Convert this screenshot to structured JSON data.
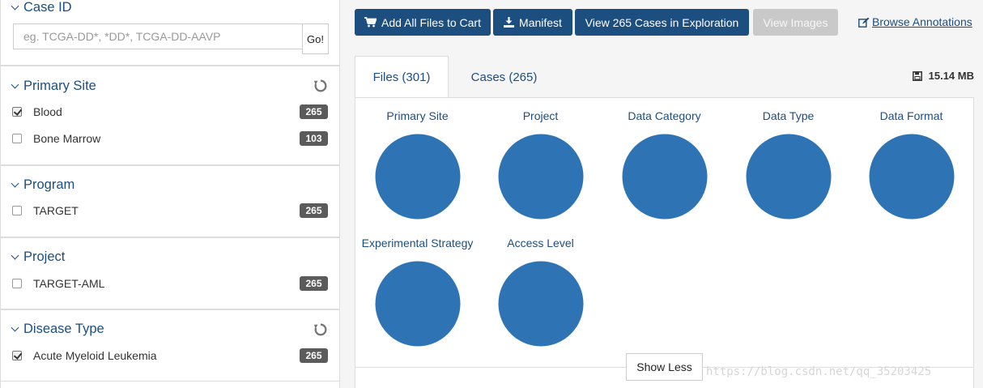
{
  "sidebar": {
    "case_id": {
      "title": "Case ID",
      "placeholder": "eg. TCGA-DD*, *DD*, TCGA-DD-AAVP",
      "go_label": "Go!"
    },
    "facets": [
      {
        "title": "Primary Site",
        "has_reset": true,
        "terms": [
          {
            "label": "Blood",
            "count": "265",
            "checked": true
          },
          {
            "label": "Bone Marrow",
            "count": "103",
            "checked": false
          }
        ]
      },
      {
        "title": "Program",
        "has_reset": false,
        "terms": [
          {
            "label": "TARGET",
            "count": "265",
            "checked": false
          }
        ]
      },
      {
        "title": "Project",
        "has_reset": false,
        "terms": [
          {
            "label": "TARGET-AML",
            "count": "265",
            "checked": false
          }
        ]
      },
      {
        "title": "Disease Type",
        "has_reset": true,
        "terms": [
          {
            "label": "Acute Myeloid Leukemia",
            "count": "265",
            "checked": true
          }
        ]
      }
    ]
  },
  "toolbar": {
    "add_all_label": "Add All Files to Cart",
    "manifest_label": "Manifest",
    "view_cases_label": "View 265 Cases in Exploration",
    "view_images_label": "View Images",
    "browse_annotations_label": "Browse Annotations"
  },
  "tabs": [
    {
      "label": "Files (301)",
      "active": true
    },
    {
      "label": "Cases (265)",
      "active": false
    }
  ],
  "size_label": "15.14 MB",
  "charts": [
    {
      "title": "Primary Site"
    },
    {
      "title": "Project"
    },
    {
      "title": "Data Category"
    },
    {
      "title": "Data Type"
    },
    {
      "title": "Data Format"
    },
    {
      "title": "Experimental Strategy"
    },
    {
      "title": "Access Level"
    }
  ],
  "show_less_label": "Show Less",
  "watermark_text": "https://blog.csdn.net/qq_35203425",
  "colors": {
    "primary": "#1c4e80",
    "pie_fill": "#2e74b5",
    "count_badge": "#5b5b5b",
    "disabled_button": "#c9c9c9"
  }
}
